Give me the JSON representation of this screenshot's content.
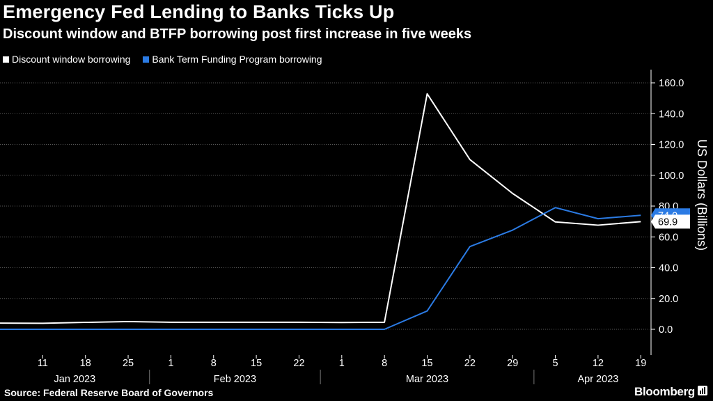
{
  "title": "Emergency Fed Lending to Banks Ticks Up",
  "subtitle": "Discount window and BTFP borrowing post first increase in five weeks",
  "source": "Source: Federal Reserve Board of Governors",
  "brand": "Bloomberg",
  "chart_data": {
    "type": "line",
    "ylabel": "US Dollars (Billions)",
    "ylim": [
      -15,
      165
    ],
    "yticks": [
      0,
      20,
      40,
      60,
      80,
      100,
      120,
      140,
      160
    ],
    "ytick_labels": [
      "0.0",
      "20.0",
      "40.0",
      "60.0",
      "80.0",
      "100.0",
      "120.0",
      "140.0",
      "160.0"
    ],
    "x": [
      "2023-01-04",
      "2023-01-11",
      "2023-01-18",
      "2023-01-25",
      "2023-02-01",
      "2023-02-08",
      "2023-02-15",
      "2023-02-22",
      "2023-03-01",
      "2023-03-08",
      "2023-03-15",
      "2023-03-22",
      "2023-03-29",
      "2023-04-05",
      "2023-04-12",
      "2023-04-19"
    ],
    "xtick_labels": [
      "",
      "11",
      "18",
      "25",
      "1",
      "8",
      "15",
      "22",
      "1",
      "8",
      "15",
      "22",
      "29",
      "5",
      "12",
      "19"
    ],
    "month_labels": [
      {
        "label": "Jan 2023",
        "start": 0,
        "end": 3.5
      },
      {
        "label": "Feb 2023",
        "start": 3.5,
        "end": 7.5
      },
      {
        "label": "Mar 2023",
        "start": 7.5,
        "end": 12.5
      },
      {
        "label": "Apr 2023",
        "start": 12.5,
        "end": 15.5
      }
    ],
    "series": [
      {
        "name": "Discount window borrowing",
        "color": "#ffffff",
        "values": [
          4.0,
          3.9,
          4.5,
          5.0,
          4.6,
          4.6,
          4.6,
          4.6,
          4.4,
          4.6,
          152.9,
          110.2,
          88.2,
          69.7,
          67.6,
          69.9
        ],
        "last_label": "69.9"
      },
      {
        "name": "Bank Term Funding Program borrowing",
        "color": "#2b7be4",
        "values": [
          0,
          0,
          0,
          0,
          0,
          0,
          0,
          0,
          0,
          0,
          11.9,
          53.7,
          64.4,
          79.0,
          71.8,
          74.0
        ],
        "last_label": "74.0"
      }
    ],
    "grid": true,
    "legend_position": "top-left"
  }
}
